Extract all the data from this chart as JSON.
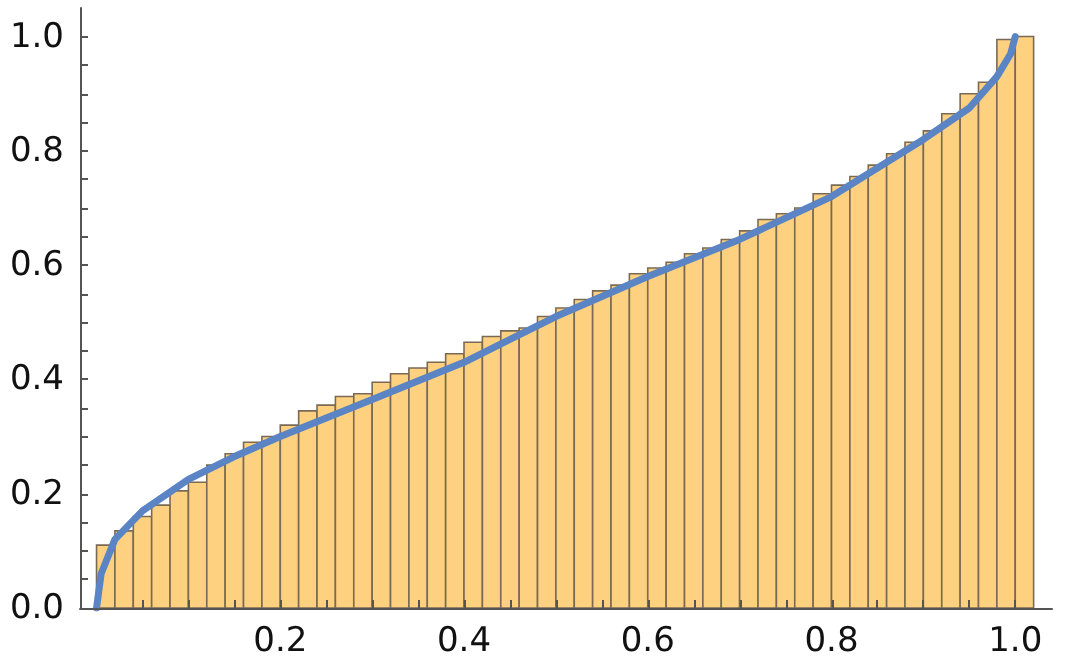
{
  "chart_data": {
    "type": "histogram",
    "bins": [
      0,
      0.02,
      0.04,
      0.06,
      0.08,
      0.1,
      0.12,
      0.14,
      0.16,
      0.18,
      0.2,
      0.22,
      0.24,
      0.26,
      0.28,
      0.3,
      0.32,
      0.34,
      0.36,
      0.38,
      0.4,
      0.42,
      0.44,
      0.46,
      0.48,
      0.5,
      0.52,
      0.54,
      0.56,
      0.58,
      0.6,
      0.62,
      0.64,
      0.66,
      0.68,
      0.7,
      0.72,
      0.74,
      0.76,
      0.78,
      0.8,
      0.82,
      0.84,
      0.86,
      0.88,
      0.9,
      0.92,
      0.94,
      0.96,
      0.98,
      1.0,
      1.02
    ],
    "series": [
      {
        "color": "#fdd17f",
        "values": [
          0.11,
          0.135,
          0.16,
          0.18,
          0.205,
          0.22,
          0.25,
          0.27,
          0.29,
          0.3,
          0.32,
          0.345,
          0.355,
          0.37,
          0.375,
          0.395,
          0.41,
          0.42,
          0.43,
          0.445,
          0.465,
          0.475,
          0.485,
          0.49,
          0.51,
          0.525,
          0.54,
          0.555,
          0.565,
          0.585,
          0.595,
          0.605,
          0.62,
          0.63,
          0.645,
          0.66,
          0.68,
          0.69,
          0.7,
          0.725,
          0.74,
          0.755,
          0.775,
          0.795,
          0.815,
          0.835,
          0.865,
          0.9,
          0.92,
          0.995,
          1.0
        ]
      },
      {
        "type": "line",
        "color": "#5b84c4",
        "x": [
          0,
          0.005,
          0.02,
          0.05,
          0.1,
          0.15,
          0.2,
          0.3,
          0.4,
          0.5,
          0.6,
          0.7,
          0.8,
          0.9,
          0.95,
          0.98,
          0.995,
          1.0
        ],
        "values": [
          0,
          0.06,
          0.12,
          0.17,
          0.225,
          0.265,
          0.3,
          0.365,
          0.43,
          0.51,
          0.58,
          0.645,
          0.72,
          0.82,
          0.875,
          0.93,
          0.97,
          1.0
        ]
      }
    ],
    "xlim": [
      -0.018,
      1.04
    ],
    "ylim": [
      0,
      1.05
    ],
    "xticks": [
      {
        "value": 0.05,
        "label": null
      },
      {
        "value": 0.1,
        "label": null
      },
      {
        "value": 0.15,
        "label": null
      },
      0.2,
      {
        "value": 0.25,
        "label": null
      },
      {
        "value": 0.3,
        "label": null
      },
      {
        "value": 0.35,
        "label": null
      },
      0.4,
      {
        "value": 0.45,
        "label": null
      },
      {
        "value": 0.5,
        "label": null
      },
      {
        "value": 0.55,
        "label": null
      },
      0.6,
      {
        "value": 0.65,
        "label": null
      },
      {
        "value": 0.7,
        "label": null
      },
      {
        "value": 0.75,
        "label": null
      },
      0.8,
      {
        "value": 0.85,
        "label": null
      },
      {
        "value": 0.9,
        "label": null
      },
      {
        "value": 0.95,
        "label": null
      },
      {
        "value": 1.0,
        "label": "1.0"
      }
    ],
    "yticks": [
      {
        "value": 0,
        "label": "0.0"
      },
      {
        "value": 0.05,
        "label": null
      },
      {
        "value": 0.1,
        "label": null
      },
      {
        "value": 0.15,
        "label": null
      },
      0.2,
      {
        "value": 0.25,
        "label": null
      },
      {
        "value": 0.3,
        "label": null
      },
      {
        "value": 0.35,
        "label": null
      },
      0.4,
      {
        "value": 0.45,
        "label": null
      },
      {
        "value": 0.5,
        "label": null
      },
      {
        "value": 0.55,
        "label": null
      },
      0.6,
      {
        "value": 0.65,
        "label": null
      },
      {
        "value": 0.7,
        "label": null
      },
      {
        "value": 0.75,
        "label": null
      },
      0.8,
      {
        "value": 0.85,
        "label": null
      },
      {
        "value": 0.9,
        "label": null
      },
      {
        "value": 0.95,
        "label": null
      },
      {
        "value": 1.0,
        "label": "1.0"
      }
    ],
    "grid": false,
    "line_style": "solid",
    "marker": "none"
  }
}
